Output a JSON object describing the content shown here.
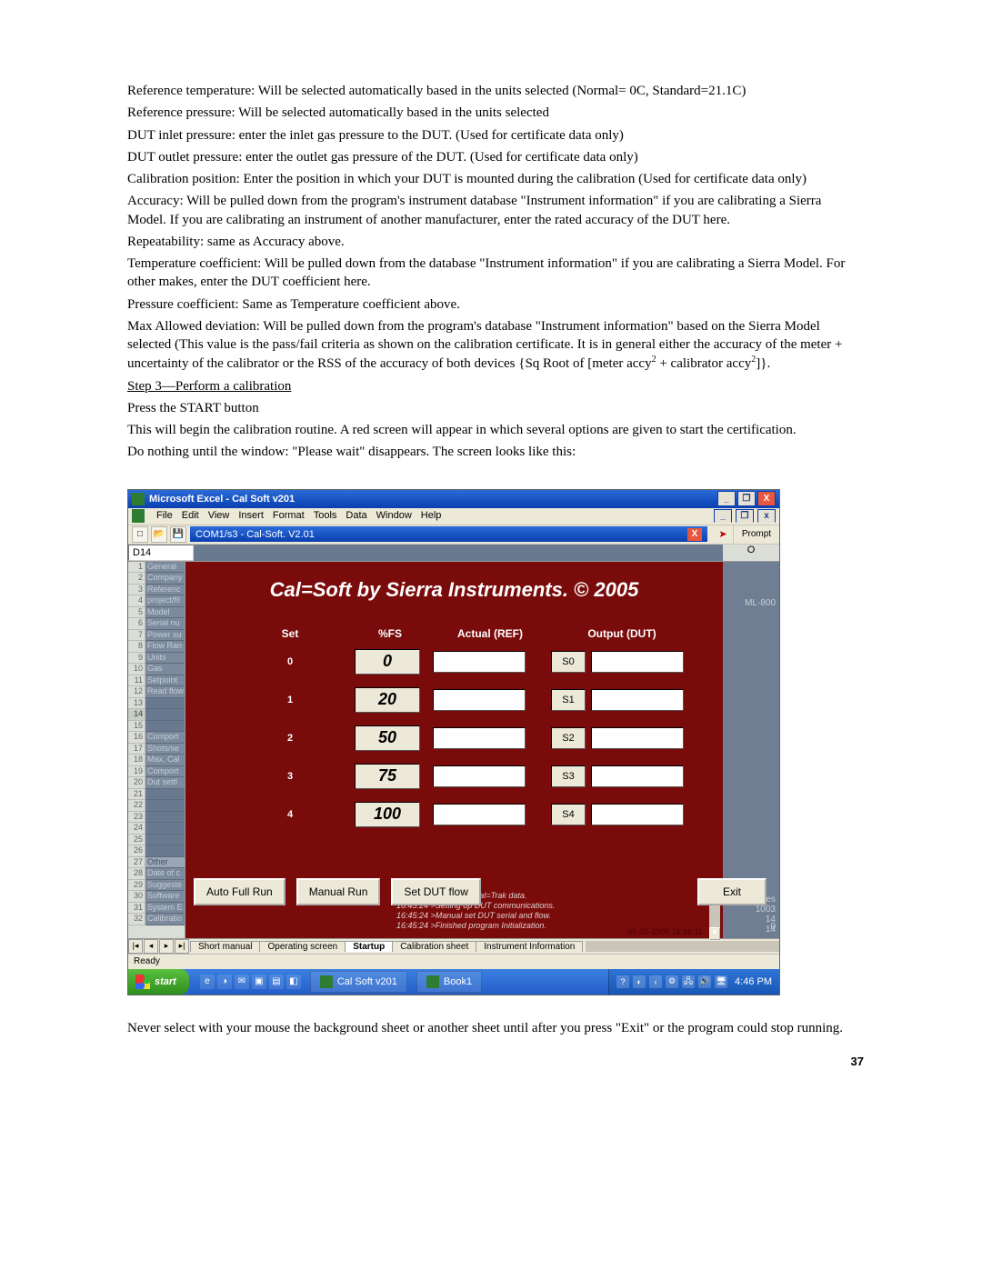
{
  "body_paragraphs": {
    "p1": "Reference temperature: Will be selected automatically based in the units selected (Normal= 0C, Standard=21.1C)",
    "p2": "Reference pressure: Will be selected automatically based in the units selected",
    "p3": "DUT inlet pressure: enter the inlet gas pressure to the DUT.  (Used for certificate data only)",
    "p4": "DUT outlet pressure: enter the outlet gas pressure of the DUT. (Used for certificate data only)",
    "p5": "Calibration position: Enter the position in which your DUT is mounted during the calibration (Used for certificate data only)",
    "p6": "Accuracy: Will be pulled down from the program's instrument database \"Instrument information\" if you are calibrating a Sierra Model.  If you are calibrating an instrument of another manufacturer, enter the rated accuracy of the DUT here.",
    "p7": "Repeatability: same as Accuracy above.",
    "p8": "Temperature coefficient: Will be pulled down from the database \"Instrument information\" if you are calibrating a Sierra Model. For other makes, enter the DUT coefficient here.",
    "p9": "Pressure coefficient: Same as Temperature coefficient above.",
    "p10a": "Max Allowed deviation: Will be pulled down from the program's database \"Instrument information\" based on the Sierra Model selected (This value is the pass/fail criteria as shown on the calibration certificate. It is in general either the accuracy of the meter + uncertainty of the calibrator or the RSS of the accuracy of both devices {Sq Root of [meter accy",
    "p10b": " + calibrator accy",
    "p10c": "]}.",
    "sup": "2"
  },
  "step3": {
    "title": "Step 3—Perform a calibration",
    "l1": "Press the START button",
    "l2": "This will begin the calibration routine.  A red screen will appear in which several options are given to start the certification.",
    "l3": "Do nothing until the window: \"Please wait\" disappears.  The screen looks like this:"
  },
  "excel": {
    "title": "Microsoft Excel - Cal Soft v201",
    "menu": {
      "file": "File",
      "edit": "Edit",
      "view": "View",
      "insert": "Insert",
      "format": "Format",
      "tools": "Tools",
      "data": "Data",
      "window": "Window",
      "help": "Help"
    },
    "inner_title": "COM1/s3 - Cal-Soft.  V2.01",
    "prompt_label": "Prompt",
    "namebox": "D14",
    "col_marker": "O",
    "right_label": "ML-800",
    "pres_label": "Pres",
    "pres_v1": "1003",
    "pres_v2": "14",
    "pres_v3": "14",
    "pres_zero": "0"
  },
  "row_labels": {
    "r1": "General",
    "r2": "Company",
    "r3": "Referenc",
    "r4": "project/fil",
    "r5": "Model",
    "r6": "Serial nu",
    "r7": "Power su",
    "r8": "Flow Ran",
    "r9": "Units",
    "r10": "Gas",
    "r11": "Setpoint",
    "r12": "Read flow",
    "r13": "",
    "r14": "",
    "r15": "",
    "r16": "Comport",
    "r17": "Shots/se",
    "r18": "Max. Cal",
    "r19": "Comport",
    "r20": "Dut settl",
    "r21": "",
    "r22": "",
    "r23": "",
    "r24": "",
    "r25": "",
    "r26": "",
    "r27": "Other",
    "r28": "Date of c",
    "r29": "Suggeste",
    "r30": "Software",
    "r31": "System E",
    "r32": "Calibratio"
  },
  "calsoft": {
    "title": "Cal=Soft by Sierra Instruments. © 2005",
    "headers": {
      "set": "Set",
      "fs": "%FS",
      "actual": "Actual (REF)",
      "output": "Output (DUT)"
    },
    "rows": [
      {
        "set": "0",
        "fs": "0",
        "pos": "S0"
      },
      {
        "set": "1",
        "fs": "20",
        "pos": "S1"
      },
      {
        "set": "2",
        "fs": "50",
        "pos": "S2"
      },
      {
        "set": "3",
        "fs": "75",
        "pos": "S3"
      },
      {
        "set": "4",
        "fs": "100",
        "pos": "S4"
      }
    ],
    "log": {
      "l1": "16:45:23 >Receiving Cal=Trak data.",
      "l2": "16:45:24 >Setting up DUT communications.",
      "l3": "16:45:24 >Manual set DUT serial and flow.",
      "l4": "16:45:24 >Finished program Initialization."
    },
    "timestamp": "05-05-2005 16:46:11",
    "buttons": {
      "auto": "Auto Full Run",
      "manual": "Manual Run",
      "setdut": "Set DUT flow",
      "exit": "Exit"
    }
  },
  "sheet_tabs": {
    "t1": "Short manual",
    "t2": "Operating screen",
    "t3": "Startup",
    "t4": "Calibration sheet",
    "t5": "Instrument Information"
  },
  "statusbar": "Ready",
  "taskbar": {
    "start": "start",
    "app1": "Cal Soft v201",
    "app2": "Book1",
    "clock": "4:46 PM"
  },
  "footer_note": "Never select with your mouse the background sheet or another sheet until after you press \"Exit\" or the program could stop running.",
  "page_number": "37",
  "colors": {
    "red_panel": "#7a0b0b",
    "xp_blue": "#245ec9",
    "xp_green": "#2e8e1d",
    "beige": "#ece9d8"
  }
}
